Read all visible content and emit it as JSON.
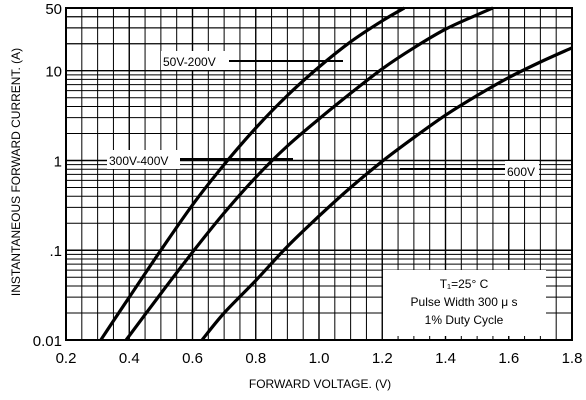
{
  "chart_data": {
    "type": "line",
    "xlabel": "FORWARD VOLTAGE. (V)",
    "ylabel": "INSTANTANEOUS FORWARD CURRENT. (A)",
    "xlim": [
      0.2,
      1.8
    ],
    "ylim": [
      0.01,
      50
    ],
    "y_scale": "log",
    "grid": true,
    "x_ticks": [
      "0.2",
      "0.4",
      "0.6",
      "0.8",
      "1.0",
      "1.2",
      "1.4",
      "1.6",
      "1.8"
    ],
    "y_ticks": [
      {
        "label": "50",
        "value": 50
      },
      {
        "label": "10",
        "value": 10
      },
      {
        "label": "1",
        "value": 1
      },
      {
        "label": ".1",
        "value": 0.1
      },
      {
        "label": "0.01",
        "value": 0.01
      }
    ],
    "series": [
      {
        "name": "50V-200V",
        "points": [
          [
            0.31,
            0.01
          ],
          [
            0.4,
            0.03
          ],
          [
            0.5,
            0.1
          ],
          [
            0.6,
            0.32
          ],
          [
            0.7,
            0.9
          ],
          [
            0.8,
            2.3
          ],
          [
            0.9,
            5.3
          ],
          [
            1.0,
            11
          ],
          [
            1.1,
            21
          ],
          [
            1.2,
            36
          ],
          [
            1.27,
            50
          ]
        ]
      },
      {
        "name": "300V-400V",
        "points": [
          [
            0.39,
            0.01
          ],
          [
            0.5,
            0.033
          ],
          [
            0.6,
            0.095
          ],
          [
            0.7,
            0.26
          ],
          [
            0.8,
            0.65
          ],
          [
            0.9,
            1.45
          ],
          [
            1.0,
            2.9
          ],
          [
            1.1,
            5.6
          ],
          [
            1.2,
            10.5
          ],
          [
            1.3,
            18
          ],
          [
            1.4,
            29
          ],
          [
            1.5,
            42
          ],
          [
            1.55,
            50
          ]
        ]
      },
      {
        "name": "600V",
        "points": [
          [
            0.63,
            0.01
          ],
          [
            0.7,
            0.02
          ],
          [
            0.8,
            0.046
          ],
          [
            0.9,
            0.11
          ],
          [
            1.0,
            0.24
          ],
          [
            1.1,
            0.5
          ],
          [
            1.2,
            0.98
          ],
          [
            1.3,
            1.8
          ],
          [
            1.4,
            3.2
          ],
          [
            1.5,
            5.3
          ],
          [
            1.6,
            8.4
          ],
          [
            1.7,
            12.5
          ],
          [
            1.8,
            18
          ]
        ]
      }
    ],
    "annotations": {
      "series_labels": [
        "50V-200V",
        "300V-400V",
        "600V"
      ],
      "info_box": [
        "T₁=25° C",
        "Pulse Width 300 μ s",
        "1% Duty Cycle"
      ]
    }
  }
}
